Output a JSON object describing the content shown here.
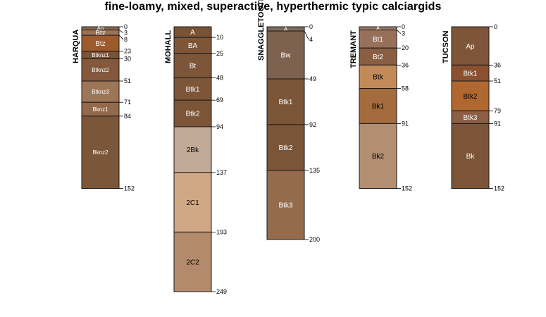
{
  "title": "fine-loamy, mixed, superactive, hyperthermic typic calciargids",
  "profiles": [
    {
      "name": "HARQUA",
      "horizons": [
        {
          "name": "Ap",
          "top": 0,
          "bottom": 3,
          "color": "#8b6a4e",
          "label_color": "#ffffff"
        },
        {
          "name": "Btz",
          "top": 3,
          "bottom": 8,
          "color": "#9a7257",
          "label_color": "#ffffff"
        },
        {
          "name": "Btz",
          "top": 8,
          "bottom": 23,
          "color": "#9c5a2d",
          "label_color": "#ffffff"
        },
        {
          "name": "Btknz1",
          "top": 23,
          "bottom": 30,
          "color": "#7a5236",
          "label_color": "#ffffff"
        },
        {
          "name": "Btknz2",
          "top": 30,
          "bottom": 51,
          "color": "#83583c",
          "label_color": "#ffffff"
        },
        {
          "name": "Btknz3",
          "top": 51,
          "bottom": 71,
          "color": "#9d7658",
          "label_color": "#ffffff"
        },
        {
          "name": "Bknz1",
          "top": 71,
          "bottom": 84,
          "color": "#93694c",
          "label_color": "#ffffff"
        },
        {
          "name": "Bknz2",
          "top": 84,
          "bottom": 152,
          "color": "#7c5639",
          "label_color": "#ffffff"
        }
      ],
      "depth_labels": [
        "0",
        "3",
        "8",
        "23",
        "30",
        "51",
        "71",
        "84",
        "152"
      ]
    },
    {
      "name": "MOHALL",
      "horizons": [
        {
          "name": "A",
          "top": 0,
          "bottom": 10,
          "color": "#7a5334",
          "label_color": "#ffffff"
        },
        {
          "name": "BA",
          "top": 10,
          "bottom": 25,
          "color": "#7e5637",
          "label_color": "#ffffff"
        },
        {
          "name": "Bt",
          "top": 25,
          "bottom": 48,
          "color": "#7d5538",
          "label_color": "#ffffff"
        },
        {
          "name": "Btk1",
          "top": 48,
          "bottom": 69,
          "color": "#7d563a",
          "label_color": "#ffffff"
        },
        {
          "name": "Btk2",
          "top": 69,
          "bottom": 94,
          "color": "#7c5538",
          "label_color": "#ffffff"
        },
        {
          "name": "2Bk",
          "top": 94,
          "bottom": 137,
          "color": "#c2aa98",
          "label_color": "#000000"
        },
        {
          "name": "2C1",
          "top": 137,
          "bottom": 193,
          "color": "#d1a886",
          "label_color": "#000000"
        },
        {
          "name": "2C2",
          "top": 193,
          "bottom": 249,
          "color": "#b38b6c",
          "label_color": "#000000"
        }
      ],
      "depth_labels": [
        "10",
        "25",
        "48",
        "69",
        "94",
        "137",
        "193",
        "249"
      ]
    },
    {
      "name": "SNAGGLETOOTH",
      "horizons": [
        {
          "name": "A",
          "top": 0,
          "bottom": 4,
          "color": "#7d6a5c",
          "label_color": "#ffffff"
        },
        {
          "name": "Bw",
          "top": 4,
          "bottom": 49,
          "color": "#7d6250",
          "label_color": "#ffffff"
        },
        {
          "name": "Btk1",
          "top": 49,
          "bottom": 92,
          "color": "#7b5537",
          "label_color": "#ffffff"
        },
        {
          "name": "Btk2",
          "top": 92,
          "bottom": 135,
          "color": "#7b5538",
          "label_color": "#ffffff"
        },
        {
          "name": "Btk3",
          "top": 135,
          "bottom": 200,
          "color": "#946c4d",
          "label_color": "#ffffff"
        }
      ],
      "depth_labels": [
        "0",
        "4",
        "49",
        "92",
        "135",
        "200"
      ]
    },
    {
      "name": "TREMANT",
      "horizons": [
        {
          "name": "A",
          "top": 0,
          "bottom": 3,
          "color": "#9c7b65",
          "label_color": "#ffffff"
        },
        {
          "name": "Bt1",
          "top": 3,
          "bottom": 20,
          "color": "#98705a",
          "label_color": "#ffffff"
        },
        {
          "name": "Bt2",
          "top": 20,
          "bottom": 36,
          "color": "#8a5e43",
          "label_color": "#ffffff"
        },
        {
          "name": "Btk",
          "top": 36,
          "bottom": 58,
          "color": "#c28a58",
          "label_color": "#000000"
        },
        {
          "name": "Bk1",
          "top": 58,
          "bottom": 91,
          "color": "#a46b3d",
          "label_color": "#000000"
        },
        {
          "name": "Bk2",
          "top": 91,
          "bottom": 152,
          "color": "#b38e70",
          "label_color": "#000000"
        }
      ],
      "depth_labels": [
        "0",
        "3",
        "20",
        "36",
        "58",
        "91",
        "152"
      ]
    },
    {
      "name": "TUCSON",
      "horizons": [
        {
          "name": "Ap",
          "top": 0,
          "bottom": 36,
          "color": "#7f5539",
          "label_color": "#ffffff"
        },
        {
          "name": "Btk1",
          "top": 36,
          "bottom": 51,
          "color": "#8a5030",
          "label_color": "#ffffff"
        },
        {
          "name": "Btk2",
          "top": 51,
          "bottom": 79,
          "color": "#b06830",
          "label_color": "#000000"
        },
        {
          "name": "Btk3",
          "top": 79,
          "bottom": 91,
          "color": "#8c5e45",
          "label_color": "#ffffff"
        },
        {
          "name": "Bk",
          "top": 91,
          "bottom": 152,
          "color": "#7c5538",
          "label_color": "#ffffff"
        }
      ],
      "depth_labels": [
        "0",
        "36",
        "51",
        "79",
        "91",
        "152"
      ]
    }
  ]
}
